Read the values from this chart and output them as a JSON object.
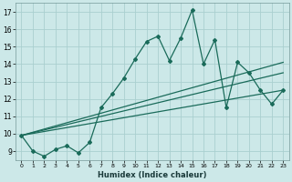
{
  "xlabel": "Humidex (Indice chaleur)",
  "bg_color": "#cce8e8",
  "grid_color": "#aacfcf",
  "line_color": "#1a6b5a",
  "xlim": [
    -0.5,
    23.5
  ],
  "ylim": [
    8.5,
    17.5
  ],
  "yticks": [
    9,
    10,
    11,
    12,
    13,
    14,
    15,
    16,
    17
  ],
  "line1_x": [
    0,
    1,
    2,
    3,
    4,
    5,
    6,
    7,
    8,
    9,
    10,
    11,
    12,
    13,
    14,
    15,
    16,
    17,
    18,
    19,
    20,
    21,
    22,
    23
  ],
  "line1_y": [
    9.9,
    9.0,
    8.7,
    9.1,
    9.3,
    8.9,
    9.5,
    11.5,
    12.3,
    13.2,
    14.3,
    15.3,
    15.6,
    14.2,
    15.5,
    17.1,
    14.0,
    15.4,
    11.5,
    14.1,
    13.5,
    12.5,
    11.7,
    12.5
  ],
  "trend1_x": [
    0,
    23
  ],
  "trend1_y": [
    9.9,
    12.5
  ],
  "trend2_x": [
    0,
    23
  ],
  "trend2_y": [
    9.9,
    13.5
  ],
  "trend3_x": [
    0,
    23
  ],
  "trend3_y": [
    9.9,
    14.1
  ]
}
